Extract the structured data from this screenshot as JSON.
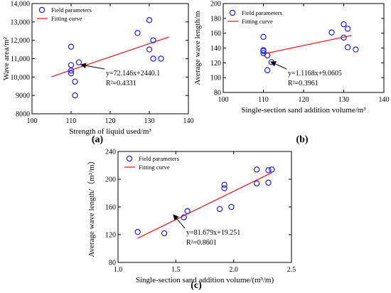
{
  "panels": [
    {
      "label": "(a)"
    },
    {
      "label": "(b)"
    },
    {
      "label": "(c)"
    }
  ],
  "colors": {
    "points": "#1f1fe0",
    "fit": "#e8121a",
    "axis": "#000000"
  },
  "chart_data": [
    {
      "type": "scatter",
      "panel": "(a)",
      "xlabel": "Strength of liquid used/m³",
      "ylabel": "Wave area/m²",
      "xlim": [
        100,
        140
      ],
      "ylim": [
        8000,
        14000
      ],
      "xticks": [
        "100",
        "110",
        "120",
        "130",
        "140"
      ],
      "yticks": [
        "8000",
        "9000",
        "10,000",
        "11,000",
        "12,000",
        "13,000",
        "14,000"
      ],
      "legend": {
        "points": "Field parameters",
        "line": "Fitting curve",
        "position": "top-left"
      },
      "points": {
        "x": [
          110,
          110,
          110,
          110,
          111,
          111,
          112,
          127,
          130,
          130,
          131,
          131,
          133
        ],
        "y": [
          10200,
          10650,
          11650,
          10350,
          9750,
          9000,
          10800,
          12400,
          13100,
          11500,
          12000,
          11000,
          11000
        ]
      },
      "fit": {
        "x": [
          105,
          135
        ],
        "y": [
          10014,
          12179
        ]
      },
      "equation": "y=72.146x+2440.1",
      "r2": "R²=0.4331",
      "annotation_point": {
        "x": 112,
        "y": 10500
      }
    },
    {
      "type": "scatter",
      "panel": "(b)",
      "xlabel": "Single-section sand addition volume/m³",
      "ylabel": "Average wave length/m",
      "xlim": [
        100,
        140
      ],
      "ylim": [
        80,
        200
      ],
      "xticks": [
        "100",
        "110",
        "120",
        "130",
        "140"
      ],
      "yticks": [
        "80",
        "100",
        "120",
        "140",
        "160",
        "180",
        "200"
      ],
      "legend": {
        "points": "Field parameters",
        "line": "Fitting curve",
        "position": "top-left"
      },
      "points": {
        "x": [
          110,
          110,
          110,
          110,
          111,
          111,
          112,
          127,
          130,
          130,
          131,
          131,
          133
        ],
        "y": [
          137,
          133,
          155,
          136,
          130,
          110,
          121,
          161,
          172,
          154,
          166,
          141,
          138
        ]
      },
      "fit": {
        "x": [
          110,
          132
        ],
        "y": [
          132,
          157
        ]
      },
      "equation": "y=1.1168x+9.0605",
      "r2": "R²=0.3961",
      "annotation_point": {
        "x": 113,
        "y": 137
      }
    },
    {
      "type": "scatter",
      "panel": "(c)",
      "xlabel": "Single-section sand addition volume/(m³/m)",
      "ylabel": "Average wave length/（m²/m）",
      "xlim": [
        1.0,
        2.5
      ],
      "ylim": [
        80,
        240
      ],
      "xticks": [
        "1.0",
        "1.5",
        "2.0",
        "2.5"
      ],
      "yticks": [
        "80",
        "120",
        "160",
        "200",
        "240"
      ],
      "legend": {
        "points": "Field parameters",
        "line": "Fitting curve",
        "position": "top-left"
      },
      "points": {
        "x": [
          1.17,
          1.4,
          1.57,
          1.6,
          1.88,
          1.92,
          1.92,
          1.98,
          2.2,
          2.2,
          2.3,
          2.3,
          2.33
        ],
        "y": [
          124,
          122,
          145,
          154,
          157,
          192,
          187,
          160,
          214,
          194,
          213,
          195,
          214
        ]
      },
      "fit": {
        "x": [
          1.17,
          2.33
        ],
        "y": [
          114.8,
          209.5
        ]
      },
      "equation": "y=81.679x+19.251",
      "r2": "R²=0.8601",
      "annotation_point": {
        "x": 1.56,
        "y": 146
      }
    }
  ]
}
